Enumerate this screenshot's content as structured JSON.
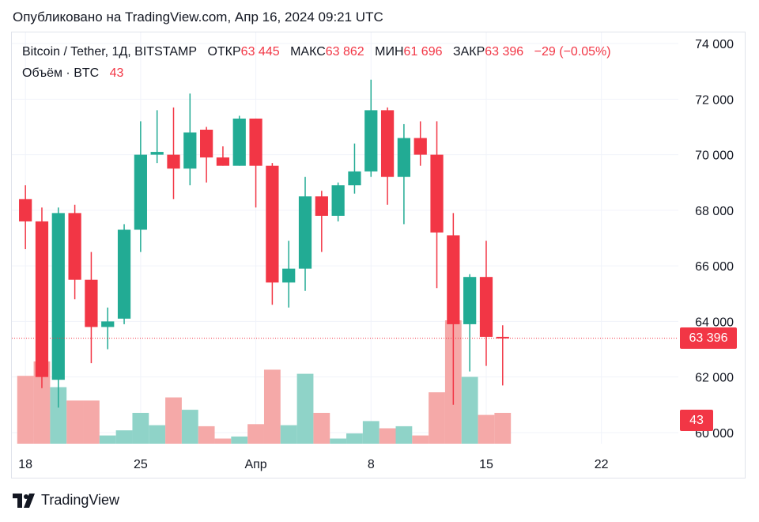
{
  "published": "Опубликовано на TradingView.com, Апр 16, 2024 09:21 UTC",
  "legend": {
    "symbol": "Bitcoin / Tether, 1Д, BITSTAMP",
    "open_label": "ОТКР",
    "open_value": "63 445",
    "high_label": "МАКС",
    "high_value": "63 862",
    "low_label": "МИН",
    "low_value": "61 696",
    "close_label": "ЗАКР",
    "close_value": "63 396",
    "change": "−29 (−0.05%)",
    "volume_label": "Объём · BTC",
    "volume_value": "43"
  },
  "price_badge": "63 396",
  "volume_badge": "43",
  "footer": {
    "brand": "TradingView"
  },
  "colors": {
    "up": "#22ab94",
    "down": "#f23645",
    "up_volume": "#8fd3c8",
    "down_volume": "#f5a9a8",
    "grid": "#f0f3fa"
  },
  "chart_data": {
    "type": "candlestick",
    "y_ticks": [
      "74 000",
      "72 000",
      "70 000",
      "68 000",
      "66 000",
      "64 000",
      "62 000",
      "60 000"
    ],
    "ylim": [
      59600,
      74400
    ],
    "x_ticks": [
      {
        "label": "18",
        "index": 0
      },
      {
        "label": "25",
        "index": 7
      },
      {
        "label": "Апр",
        "index": 14
      },
      {
        "label": "8",
        "index": 21
      },
      {
        "label": "15",
        "index": 28
      },
      {
        "label": "22",
        "index": 35
      }
    ],
    "x_range": [
      -0.2,
      40.3
    ],
    "last_close": 63396,
    "candles": [
      {
        "date": "Mar 18",
        "open": 68400,
        "high": 68900,
        "low": 66600,
        "close": 67600,
        "volume": 0.66
      },
      {
        "date": "Mar 19",
        "open": 67600,
        "high": 68100,
        "low": 61600,
        "close": 62000,
        "volume": 0.8
      },
      {
        "date": "Mar 20",
        "open": 61900,
        "high": 68100,
        "low": 60900,
        "close": 67900,
        "volume": 0.55
      },
      {
        "date": "Mar 21",
        "open": 67900,
        "high": 68200,
        "low": 64800,
        "close": 65500,
        "volume": 0.42
      },
      {
        "date": "Mar 22",
        "open": 65500,
        "high": 66500,
        "low": 62500,
        "close": 63800,
        "volume": 0.42
      },
      {
        "date": "Mar 23",
        "open": 63800,
        "high": 64500,
        "low": 63000,
        "close": 64000,
        "volume": 0.08
      },
      {
        "date": "Mar 24",
        "open": 64100,
        "high": 67500,
        "low": 63900,
        "close": 67300,
        "volume": 0.13
      },
      {
        "date": "Mar 25",
        "open": 67300,
        "high": 71200,
        "low": 66500,
        "close": 70000,
        "volume": 0.3
      },
      {
        "date": "Mar 26",
        "open": 70000,
        "high": 71600,
        "low": 69700,
        "close": 70100,
        "volume": 0.18
      },
      {
        "date": "Mar 27",
        "open": 70000,
        "high": 71700,
        "low": 68400,
        "close": 69500,
        "volume": 0.45
      },
      {
        "date": "Mar 28",
        "open": 69500,
        "high": 72200,
        "low": 68900,
        "close": 70800,
        "volume": 0.33
      },
      {
        "date": "Mar 29",
        "open": 70900,
        "high": 71000,
        "low": 69000,
        "close": 69900,
        "volume": 0.17
      },
      {
        "date": "Mar 30",
        "open": 69900,
        "high": 70300,
        "low": 69600,
        "close": 69600,
        "volume": 0.05
      },
      {
        "date": "Mar 31",
        "open": 69600,
        "high": 71400,
        "low": 69600,
        "close": 71300,
        "volume": 0.07
      },
      {
        "date": "Apr 1",
        "open": 71300,
        "high": 71300,
        "low": 68100,
        "close": 69600,
        "volume": 0.19
      },
      {
        "date": "Apr 2",
        "open": 69600,
        "high": 69700,
        "low": 64600,
        "close": 65400,
        "volume": 0.72
      },
      {
        "date": "Apr 3",
        "open": 65400,
        "high": 66900,
        "low": 64500,
        "close": 65900,
        "volume": 0.18
      },
      {
        "date": "Apr 4",
        "open": 65900,
        "high": 69200,
        "low": 65100,
        "close": 68500,
        "volume": 0.68
      },
      {
        "date": "Apr 5",
        "open": 68500,
        "high": 68700,
        "low": 66500,
        "close": 67800,
        "volume": 0.3
      },
      {
        "date": "Apr 6",
        "open": 67800,
        "high": 69000,
        "low": 67600,
        "close": 68900,
        "volume": 0.05
      },
      {
        "date": "Apr 7",
        "open": 68900,
        "high": 70400,
        "low": 68600,
        "close": 69400,
        "volume": 0.1
      },
      {
        "date": "Apr 8",
        "open": 69400,
        "high": 72700,
        "low": 69200,
        "close": 71600,
        "volume": 0.22
      },
      {
        "date": "Apr 9",
        "open": 71600,
        "high": 71700,
        "low": 68200,
        "close": 69200,
        "volume": 0.15
      },
      {
        "date": "Apr 10",
        "open": 69200,
        "high": 71100,
        "low": 67500,
        "close": 70600,
        "volume": 0.17
      },
      {
        "date": "Apr 11",
        "open": 70600,
        "high": 71200,
        "low": 69600,
        "close": 70000,
        "volume": 0.08
      },
      {
        "date": "Apr 12",
        "open": 70000,
        "high": 71200,
        "low": 65200,
        "close": 67200,
        "volume": 0.5
      },
      {
        "date": "Apr 13",
        "open": 67100,
        "high": 67900,
        "low": 61000,
        "close": 63900,
        "volume": 1.2
      },
      {
        "date": "Apr 14",
        "open": 63900,
        "high": 65700,
        "low": 62200,
        "close": 65600,
        "volume": 0.65
      },
      {
        "date": "Apr 15",
        "open": 65600,
        "high": 66900,
        "low": 62400,
        "close": 63445,
        "volume": 0.28
      },
      {
        "date": "Apr 16",
        "open": 63445,
        "high": 63862,
        "low": 61696,
        "close": 63396,
        "volume": 0.3
      }
    ]
  }
}
